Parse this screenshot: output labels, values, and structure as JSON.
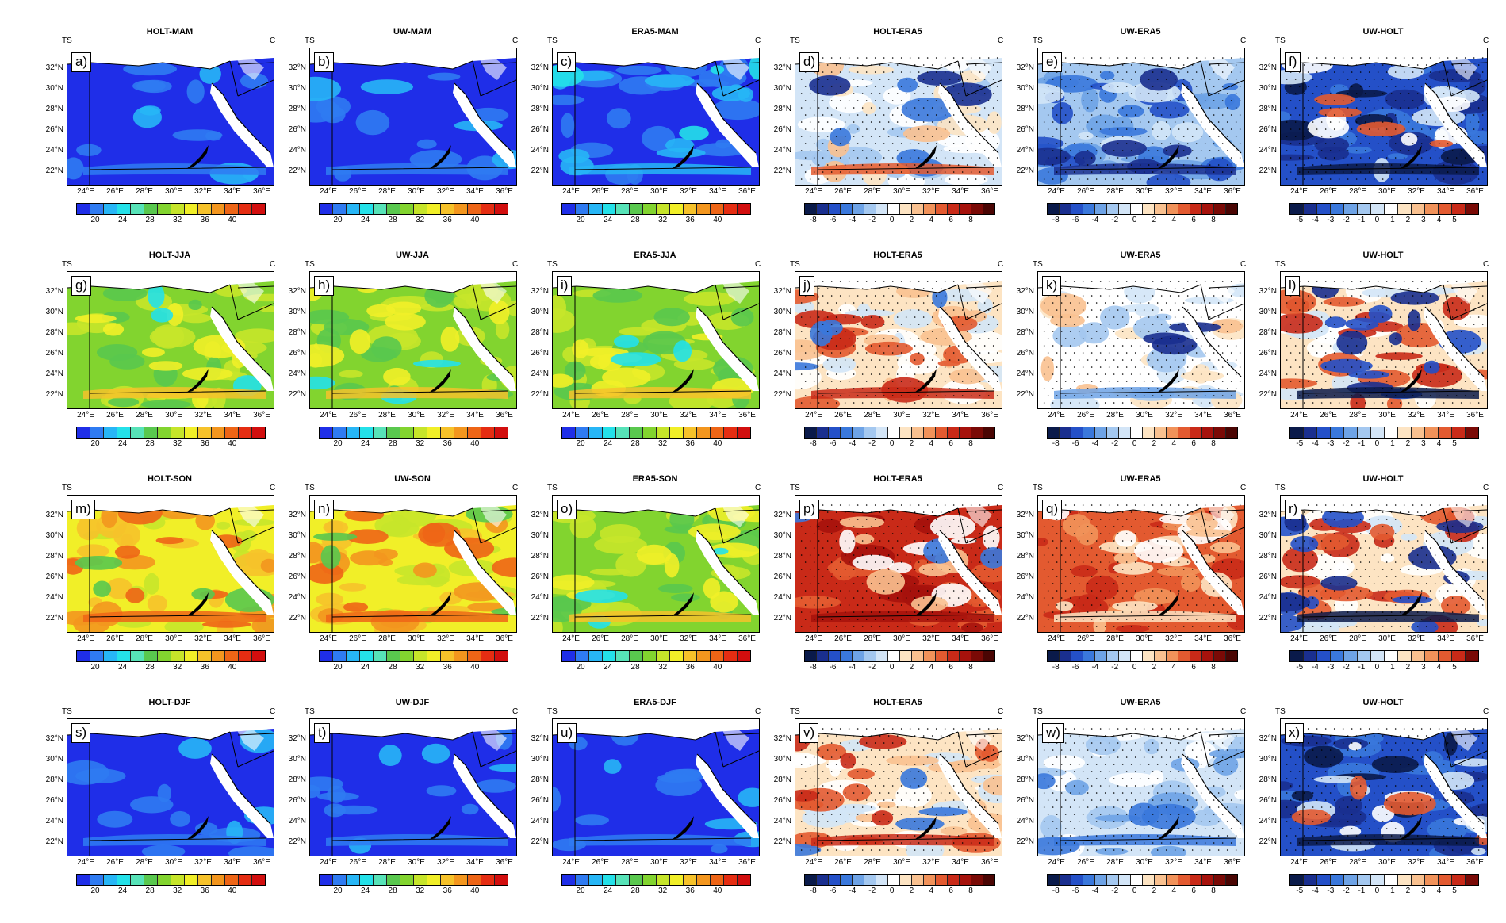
{
  "corner_left": "TS",
  "corner_right": "C",
  "lat_labels": [
    "32°N",
    "30°N",
    "28°N",
    "26°N",
    "24°N",
    "22°N"
  ],
  "lon_labels": [
    "24°E",
    "26°E",
    "28°E",
    "30°E",
    "32°E",
    "34°E",
    "36°E"
  ],
  "colorbars": {
    "abs": {
      "ticks": [
        "20",
        "24",
        "28",
        "32",
        "36",
        "40"
      ],
      "colors": [
        "#1f2ee8",
        "#2f7bf2",
        "#27b6f6",
        "#24e1e9",
        "#57e3b8",
        "#59c84e",
        "#82d42f",
        "#c6e52a",
        "#f1ef28",
        "#f6c22a",
        "#f3961e",
        "#ee6516",
        "#e52d12",
        "#d20e0e"
      ]
    },
    "diff8": {
      "ticks": [
        "-8",
        "-6",
        "-4",
        "-2",
        "0",
        "2",
        "4",
        "6",
        "8"
      ],
      "colors": [
        "#0a1a4a",
        "#1a2f8f",
        "#2450c8",
        "#3a78dc",
        "#6ea3e6",
        "#a4c8f0",
        "#d3e5f7",
        "#ffffff",
        "#fde4c3",
        "#f9c190",
        "#f1925a",
        "#e35a30",
        "#c92a18",
        "#a6120c",
        "#7a0a06",
        "#4a0503"
      ]
    },
    "diff5": {
      "ticks": [
        "-5",
        "-4",
        "-3",
        "-2",
        "-1",
        "0",
        "1",
        "2",
        "3",
        "4",
        "5"
      ],
      "colors": [
        "#0a1a4a",
        "#1a2f8f",
        "#2450c8",
        "#3a78dc",
        "#6ea3e6",
        "#a4c8f0",
        "#d3e5f7",
        "#ffffff",
        "#fde4c3",
        "#f9c190",
        "#f1925a",
        "#e35a30",
        "#c92a18",
        "#7a0a06"
      ]
    }
  },
  "panels": [
    {
      "label": "a)",
      "title": "HOLT-MAM",
      "kind": "abs",
      "pattern": "cool"
    },
    {
      "label": "b)",
      "title": "UW-MAM",
      "kind": "abs",
      "pattern": "cool"
    },
    {
      "label": "c)",
      "title": "ERA5-MAM",
      "kind": "abs",
      "pattern": "cool2"
    },
    {
      "label": "d)",
      "title": "HOLT-ERA5",
      "kind": "diff8",
      "pattern": "d_mam_holt"
    },
    {
      "label": "e)",
      "title": "UW-ERA5",
      "kind": "diff8",
      "pattern": "d_mam_uw"
    },
    {
      "label": "f)",
      "title": "UW-HOLT",
      "kind": "diff5",
      "pattern": "d_uwholt_neg"
    },
    {
      "label": "g)",
      "title": "HOLT-JJA",
      "kind": "abs",
      "pattern": "warm"
    },
    {
      "label": "h)",
      "title": "UW-JJA",
      "kind": "abs",
      "pattern": "warm"
    },
    {
      "label": "i)",
      "title": "ERA5-JJA",
      "kind": "abs",
      "pattern": "warm"
    },
    {
      "label": "j)",
      "title": "HOLT-ERA5",
      "kind": "diff8",
      "pattern": "d_jja_holt"
    },
    {
      "label": "k)",
      "title": "UW-ERA5",
      "kind": "diff8",
      "pattern": "d_jja_uw"
    },
    {
      "label": "l)",
      "title": "UW-HOLT",
      "kind": "diff5",
      "pattern": "d_uwholt_mix"
    },
    {
      "label": "m)",
      "title": "HOLT-SON",
      "kind": "abs",
      "pattern": "hot"
    },
    {
      "label": "n)",
      "title": "UW-SON",
      "kind": "abs",
      "pattern": "hot"
    },
    {
      "label": "o)",
      "title": "ERA5-SON",
      "kind": "abs",
      "pattern": "warm"
    },
    {
      "label": "p)",
      "title": "HOLT-ERA5",
      "kind": "diff8",
      "pattern": "d_son_hot"
    },
    {
      "label": "q)",
      "title": "UW-ERA5",
      "kind": "diff8",
      "pattern": "d_son_hot2"
    },
    {
      "label": "r)",
      "title": "UW-HOLT",
      "kind": "diff5",
      "pattern": "d_uwholt_mix"
    },
    {
      "label": "s)",
      "title": "HOLT-DJF",
      "kind": "abs",
      "pattern": "cool"
    },
    {
      "label": "t)",
      "title": "UW-DJF",
      "kind": "abs",
      "pattern": "cool"
    },
    {
      "label": "u)",
      "title": "ERA5-DJF",
      "kind": "abs",
      "pattern": "cool"
    },
    {
      "label": "v)",
      "title": "HOLT-ERA5",
      "kind": "diff8",
      "pattern": "d_jja_holt"
    },
    {
      "label": "w)",
      "title": "UW-ERA5",
      "kind": "diff8",
      "pattern": "d_mam_uw_light"
    },
    {
      "label": "x)",
      "title": "UW-HOLT",
      "kind": "diff5",
      "pattern": "d_uwholt_neg"
    }
  ]
}
